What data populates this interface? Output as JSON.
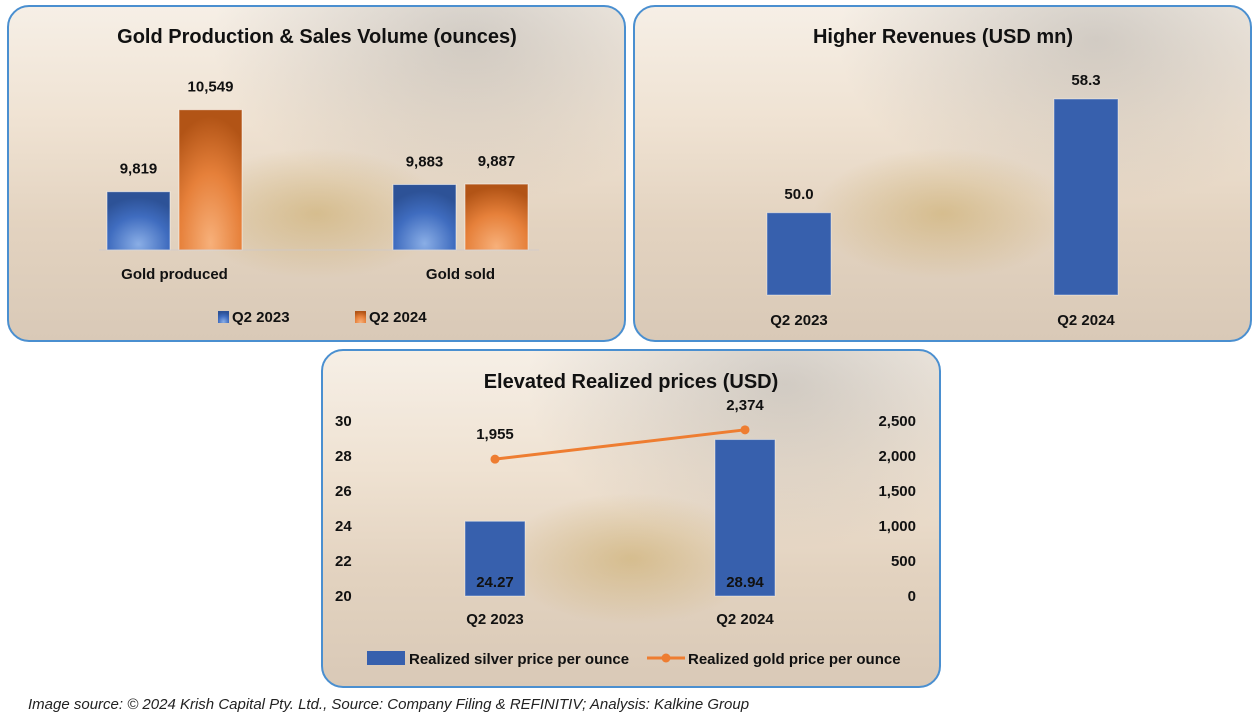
{
  "chart_data": [
    {
      "type": "bar",
      "title": "Gold Production & Sales Volume (ounces)",
      "categories": [
        "Gold produced",
        "Gold sold"
      ],
      "series": [
        {
          "name": "Q2 2023",
          "values": [
            9819,
            9883
          ],
          "labels": [
            "9,819",
            "9,883"
          ],
          "color": "#3a64b0"
        },
        {
          "name": "Q2 2024",
          "values": [
            10549,
            9887
          ],
          "labels": [
            "10,549",
            "9,887"
          ],
          "color": "#e07a30"
        }
      ],
      "legend": "bottom",
      "xlabel": "",
      "ylabel": "",
      "grid": false
    },
    {
      "type": "bar",
      "title": "Higher Revenues (USD mn)",
      "categories": [
        "Q2 2023",
        "Q2 2024"
      ],
      "values": [
        50.0,
        58.3
      ],
      "labels": [
        "50.0",
        "58.3"
      ],
      "color": "#3760ad",
      "xlabel": "",
      "ylabel": "",
      "grid": false
    },
    {
      "type": "bar",
      "title": "Elevated Realized prices (USD)",
      "categories": [
        "Q2 2023",
        "Q2 2024"
      ],
      "series": [
        {
          "name": "Realized silver price per ounce",
          "kind": "bar",
          "axis": "left",
          "values": [
            24.27,
            28.94
          ],
          "labels": [
            "24.27",
            "28.94"
          ],
          "color": "#3760ad"
        },
        {
          "name": "Realized gold price per ounce",
          "kind": "line",
          "axis": "right",
          "values": [
            1955,
            2374
          ],
          "labels": [
            "1,955",
            "2,374"
          ],
          "color": "#ee7d31"
        }
      ],
      "y_left": {
        "min": 20,
        "max": 30,
        "ticks": [
          "20",
          "22",
          "24",
          "26",
          "28",
          "30"
        ]
      },
      "y_right": {
        "min": 0,
        "max": 2500,
        "ticks": [
          "0",
          "500",
          "1,000",
          "1,500",
          "2,000",
          "2,500"
        ]
      },
      "legend": "bottom",
      "grid": false
    }
  ],
  "footer": {
    "caption": "Image source: © 2024 Krish Capital Pty. Ltd., Source: Company Filing & REFINITIV; Analysis: Kalkine Group"
  }
}
